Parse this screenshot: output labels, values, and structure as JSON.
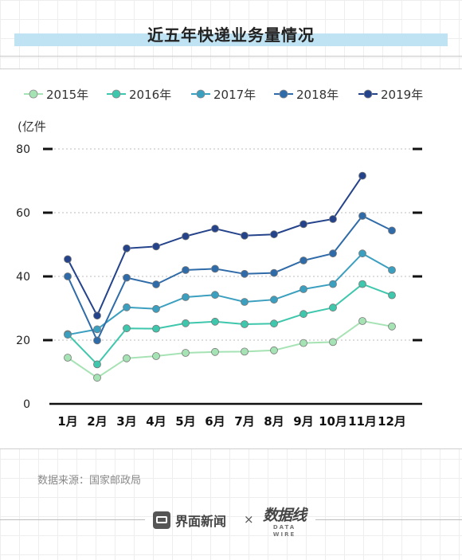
{
  "page": {
    "title": "近五年快递业务量情况",
    "source": "数据来源：国家邮政局",
    "brand_left": "界面新闻",
    "times_sign": "×",
    "brand_right": "数据线",
    "brand_right_sub": "DATA WIRE"
  },
  "chart_data": {
    "type": "line",
    "title": "近五年快递业务量情况",
    "ylabel": "(亿件",
    "xlabel": "",
    "categories": [
      "1月",
      "2月",
      "3月",
      "4月",
      "5月",
      "6月",
      "7月",
      "8月",
      "9月",
      "10月",
      "11月",
      "12月"
    ],
    "ylim": [
      0,
      80
    ],
    "yticks": [
      0,
      20,
      40,
      60,
      80
    ],
    "grid": "horizontal-dotted",
    "legend_position": "top",
    "series": [
      {
        "name": "2015年",
        "color": "#a6e3b4",
        "values": [
          14.5,
          8.2,
          14.3,
          15.0,
          16.0,
          16.3,
          16.4,
          16.8,
          19.1,
          19.4,
          26.0,
          24.3
        ]
      },
      {
        "name": "2016年",
        "color": "#3ec7ac",
        "values": [
          21.9,
          12.4,
          23.7,
          23.6,
          25.3,
          25.8,
          25.0,
          25.2,
          28.2,
          30.2,
          37.6,
          34.1
        ]
      },
      {
        "name": "2017年",
        "color": "#3b9fc0",
        "values": [
          21.7,
          23.4,
          30.3,
          29.8,
          33.5,
          34.2,
          32.0,
          32.7,
          36.0,
          37.6,
          47.2,
          42.0
        ]
      },
      {
        "name": "2018年",
        "color": "#2f6ba8",
        "values": [
          40.0,
          19.9,
          39.6,
          37.5,
          42.0,
          42.4,
          40.8,
          41.1,
          45.0,
          47.2,
          59.0,
          54.4
        ]
      },
      {
        "name": "2019年",
        "color": "#24438b",
        "values": [
          45.4,
          27.7,
          48.8,
          49.4,
          52.6,
          55.0,
          52.8,
          53.2,
          56.4,
          58.0,
          71.6,
          null
        ]
      }
    ]
  }
}
